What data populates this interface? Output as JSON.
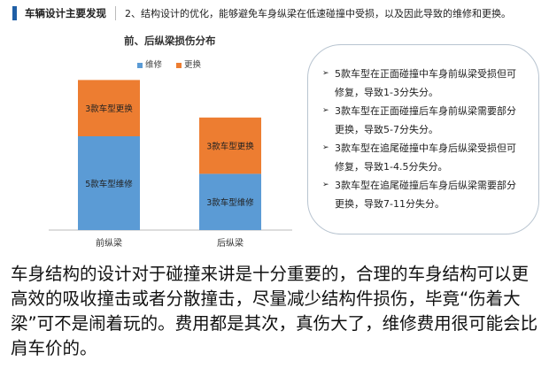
{
  "header": {
    "section": "车辆设计主要发现",
    "subtitle": "2、结构设计的优化，能够避免车身纵梁在低速碰撞中受损，以及因此导致的维修和更换。"
  },
  "chart_data": {
    "type": "bar",
    "stacked": true,
    "title": "前、后纵梁损伤分布",
    "categories": [
      "前纵梁",
      "后纵梁"
    ],
    "series": [
      {
        "name": "维修",
        "color": "#5b9bd5",
        "values": [
          5,
          3
        ],
        "labels": [
          "5款车型维修",
          "3款车型维修"
        ]
      },
      {
        "name": "更换",
        "color": "#ed7d31",
        "values": [
          3,
          3
        ],
        "labels": [
          "3款车型更换",
          "3款车型更换"
        ]
      }
    ],
    "legend": "top",
    "grid": false,
    "ylim": [
      0,
      8
    ]
  },
  "notes": [
    "5款车型在正面碰撞中车身前纵梁受损但可修复，导致1-3分失分。",
    "3款车型在正面碰撞后车身前纵梁需要部分更换，导致5-7分失分。",
    "3款车型在追尾碰撞中车身后纵梁受损但可修复，导致1-4.5分失分。",
    "3款车型在追尾碰撞后车身后纵梁需要部分更换，导致7-11分失分。"
  ],
  "body": "车身结构的设计对于碰撞来讲是十分重要的，合理的车身结构可以更高效的吸收撞击或者分散撞击，尽量减少结构件损伤，毕竟“伤着大梁”可不是闹着玩的。费用都是其次，真伤大了，维修费用很可能会比肩车价的。"
}
